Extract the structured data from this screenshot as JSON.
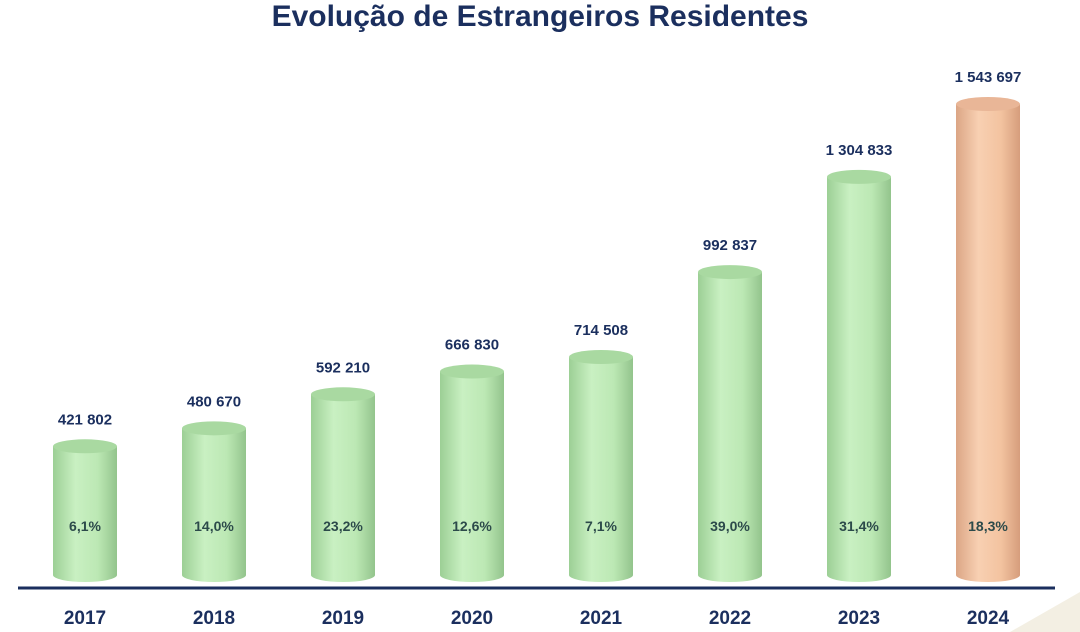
{
  "chart_data": {
    "type": "bar",
    "title": "Evolução de Estrangeiros Residentes",
    "xlabel": "",
    "ylabel": "",
    "ylim": [
      0,
      1543697
    ],
    "grid": false,
    "categories": [
      "2017",
      "2018",
      "2019",
      "2020",
      "2021",
      "2022",
      "2023",
      "2024"
    ],
    "values": [
      421802,
      480670,
      592210,
      666830,
      714508,
      992837,
      1304833,
      1543697
    ],
    "value_labels": [
      "421 802",
      "480 670",
      "592 210",
      "666 830",
      "714 508",
      "992 837",
      "1 304 833",
      "1 543 697"
    ],
    "growth_labels": [
      "6,1%",
      "14,0%",
      "23,2%",
      "12,6%",
      "7,1%",
      "39,0%",
      "31,4%",
      "18,3%"
    ],
    "bar_colors": [
      "#bfe9b8",
      "#bfe9b8",
      "#bfe9b8",
      "#bfe9b8",
      "#bfe9b8",
      "#bfe9b8",
      "#bfe9b8",
      "#f4c6a4"
    ],
    "text_color": "#1b2f5e",
    "axis_color": "#1b2f5e"
  }
}
